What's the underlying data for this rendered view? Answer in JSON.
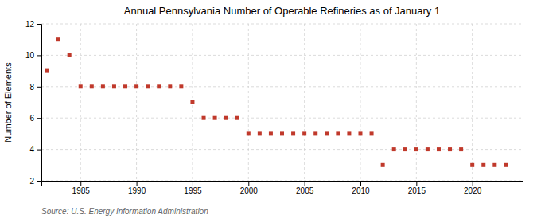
{
  "chart_data": {
    "type": "scatter",
    "title": "Annual Pennsylvania Number of Operable Refineries as of January 1",
    "ylabel": "Number of Elements",
    "source": "Source: U.S. Energy Information Administration",
    "x": [
      1982,
      1983,
      1984,
      1985,
      1986,
      1987,
      1988,
      1989,
      1990,
      1991,
      1992,
      1993,
      1994,
      1995,
      1996,
      1997,
      1998,
      1999,
      2000,
      2001,
      2002,
      2003,
      2004,
      2005,
      2006,
      2007,
      2008,
      2009,
      2010,
      2011,
      2012,
      2013,
      2014,
      2015,
      2016,
      2017,
      2018,
      2019,
      2020,
      2021,
      2022,
      2023
    ],
    "values": [
      9,
      11,
      10,
      8,
      8,
      8,
      8,
      8,
      8,
      8,
      8,
      8,
      8,
      7,
      6,
      6,
      6,
      6,
      5,
      5,
      5,
      5,
      5,
      5,
      5,
      5,
      5,
      5,
      5,
      5,
      3,
      4,
      4,
      4,
      4,
      4,
      4,
      4,
      3,
      3,
      3,
      3
    ],
    "color": "#c0392b",
    "marker": "square",
    "xlim": [
      1981.5,
      2024.5
    ],
    "xticks": [
      1985,
      1990,
      1995,
      2000,
      2005,
      2010,
      2015,
      2020
    ],
    "ylim": [
      2,
      12
    ],
    "yticks": [
      2,
      4,
      6,
      8,
      10,
      12
    ],
    "grid": true
  }
}
